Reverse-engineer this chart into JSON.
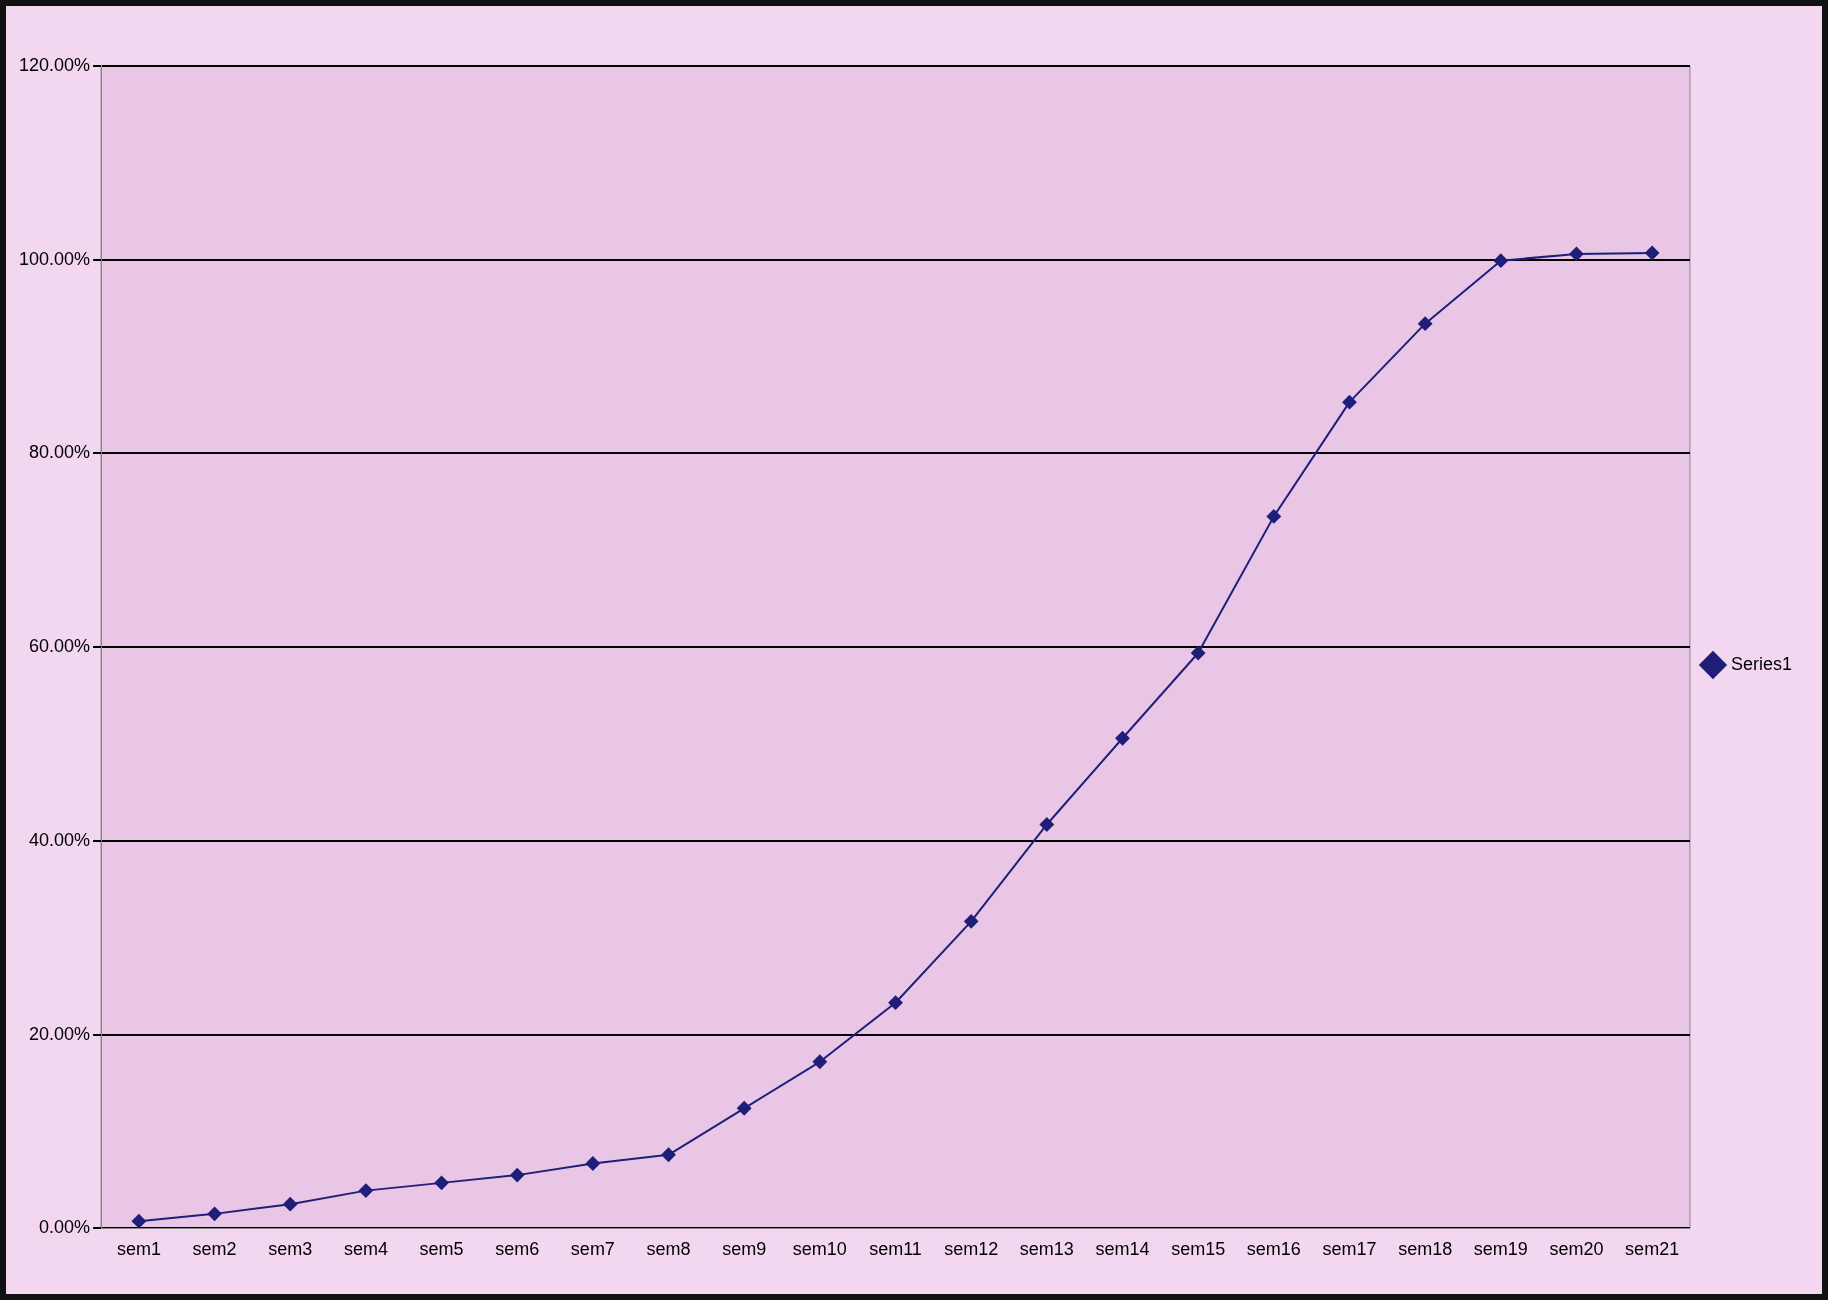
{
  "chart_data": {
    "type": "line",
    "categories": [
      "sem1",
      "sem2",
      "sem3",
      "sem4",
      "sem5",
      "sem6",
      "sem7",
      "sem8",
      "sem9",
      "sem10",
      "sem11",
      "sem12",
      "sem13",
      "sem14",
      "sem15",
      "sem16",
      "sem17",
      "sem18",
      "sem19",
      "sem20",
      "sem21"
    ],
    "series": [
      {
        "name": "Series1",
        "color": "#1f1f7a",
        "values": [
          0.75,
          1.5,
          2.5,
          3.9,
          4.7,
          5.5,
          6.7,
          7.6,
          12.4,
          17.2,
          23.3,
          31.7,
          41.7,
          50.6,
          59.4,
          73.5,
          85.3,
          93.4,
          99.9,
          100.6,
          100.7
        ]
      }
    ],
    "ylim": [
      0,
      120
    ],
    "yticks": [
      {
        "value": 0,
        "label": "0.00%"
      },
      {
        "value": 20,
        "label": "20.00%"
      },
      {
        "value": 40,
        "label": "40.00%"
      },
      {
        "value": 60,
        "label": "60.00%"
      },
      {
        "value": 80,
        "label": "80.00%"
      },
      {
        "value": 100,
        "label": "100.00%"
      },
      {
        "value": 120,
        "label": "120.00%"
      }
    ],
    "grid": "y",
    "legend": "right",
    "marker": "diamond",
    "line_style": "solid"
  }
}
